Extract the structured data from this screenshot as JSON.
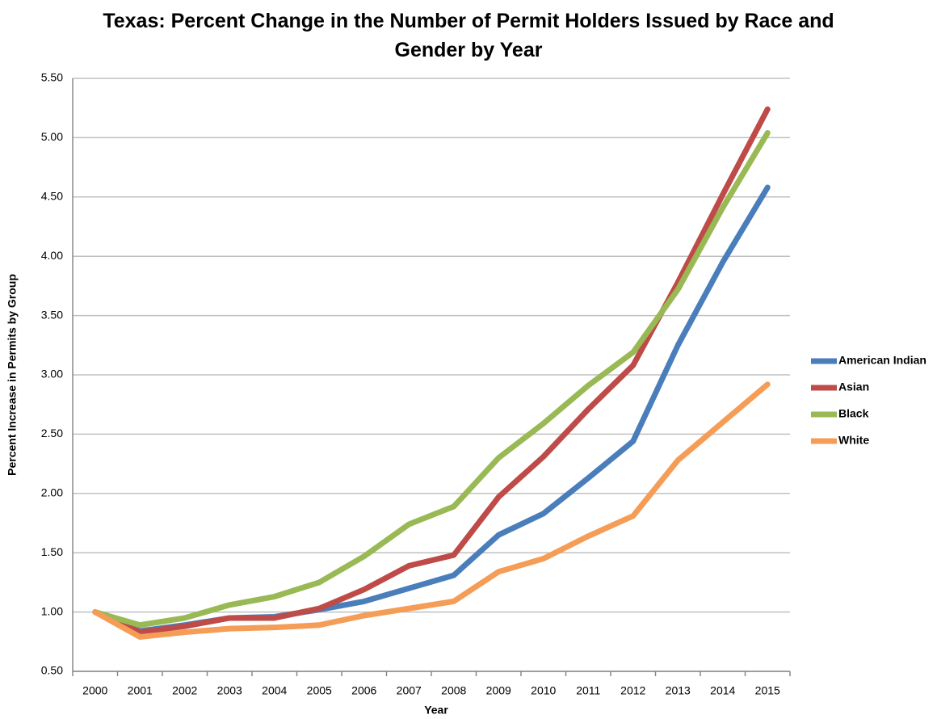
{
  "chart_data": {
    "type": "line",
    "title": "Texas: Percent Change in the Number of Permit Holders Issued by Race and Gender by Year",
    "x_label": "Year",
    "y_label": "Percent Increase in Permits by Group",
    "categories": [
      "2000",
      "2001",
      "2002",
      "2003",
      "2004",
      "2005",
      "2006",
      "2007",
      "2008",
      "2009",
      "2010",
      "2011",
      "2012",
      "2013",
      "2014",
      "2015"
    ],
    "series": [
      {
        "name": "American Indian",
        "color": "#4a7ebb",
        "values": [
          1.0,
          0.84,
          0.89,
          0.95,
          0.96,
          1.02,
          1.09,
          1.2,
          1.31,
          1.65,
          1.83,
          2.13,
          2.44,
          3.25,
          3.95,
          4.58
        ]
      },
      {
        "name": "Asian",
        "color": "#be4b48",
        "values": [
          1.0,
          0.83,
          0.88,
          0.95,
          0.95,
          1.03,
          1.19,
          1.39,
          1.48,
          1.97,
          2.31,
          2.71,
          3.08,
          3.78,
          4.52,
          5.24
        ]
      },
      {
        "name": "Black",
        "color": "#98b954",
        "values": [
          1.0,
          0.89,
          0.95,
          1.06,
          1.13,
          1.25,
          1.47,
          1.74,
          1.89,
          2.3,
          2.59,
          2.91,
          3.19,
          3.72,
          4.41,
          5.04
        ]
      },
      {
        "name": "White",
        "color": "#f59d56",
        "values": [
          1.0,
          0.79,
          0.83,
          0.86,
          0.87,
          0.89,
          0.97,
          1.03,
          1.09,
          1.34,
          1.45,
          1.64,
          1.81,
          2.28,
          2.6,
          2.92
        ]
      }
    ],
    "ylim": [
      0.5,
      5.5
    ],
    "yticks": [
      {
        "value": 0.5,
        "label": "0.50"
      },
      {
        "value": 1.0,
        "label": "1.00"
      },
      {
        "value": 1.5,
        "label": "1.50"
      },
      {
        "value": 2.0,
        "label": "2.00"
      },
      {
        "value": 2.5,
        "label": "2.50"
      },
      {
        "value": 3.0,
        "label": "3.00"
      },
      {
        "value": 3.5,
        "label": "3.50"
      },
      {
        "value": 4.0,
        "label": "4.00"
      },
      {
        "value": 4.5,
        "label": "4.50"
      },
      {
        "value": 5.0,
        "label": "5.00"
      },
      {
        "value": 5.5,
        "label": "5.50"
      }
    ],
    "grid": true,
    "legend": "right"
  }
}
